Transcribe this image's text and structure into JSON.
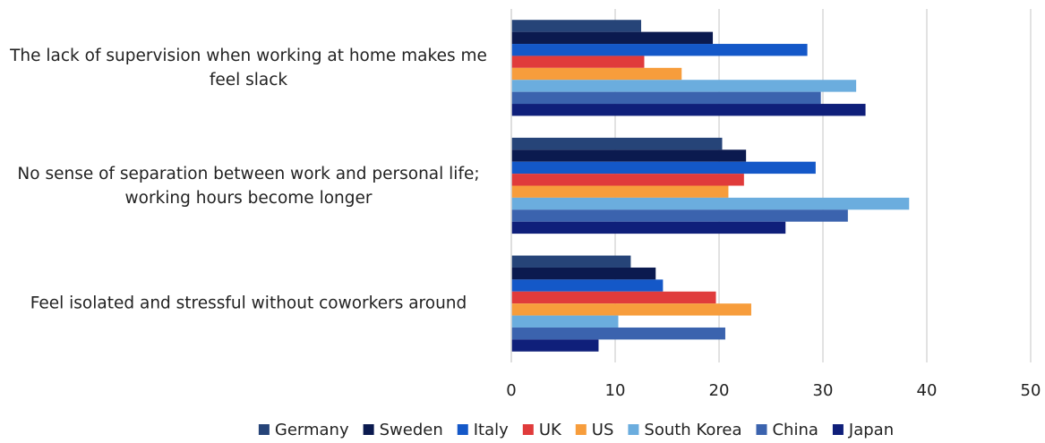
{
  "chart_data": {
    "type": "bar",
    "orientation": "horizontal",
    "categories": [
      "The lack of supervision when working at home makes me feel slack",
      "No sense of separation between work and personal life; working hours become longer",
      "Feel isolated and stressful without coworkers around"
    ],
    "series": [
      {
        "name": "Germany",
        "color": "#264478",
        "values": [
          12.5,
          20.3,
          11.5
        ]
      },
      {
        "name": "Sweden",
        "color": "#0b1a4f",
        "values": [
          19.4,
          22.6,
          13.9
        ]
      },
      {
        "name": "Italy",
        "color": "#1458c8",
        "values": [
          28.5,
          29.3,
          14.6
        ]
      },
      {
        "name": "UK",
        "color": "#e03b3b",
        "values": [
          12.8,
          22.4,
          19.7
        ]
      },
      {
        "name": "US",
        "color": "#f79d3c",
        "values": [
          16.4,
          20.9,
          23.1
        ]
      },
      {
        "name": "South Korea",
        "color": "#6badde",
        "values": [
          33.2,
          38.3,
          10.3
        ]
      },
      {
        "name": "China",
        "color": "#3b63ae",
        "values": [
          29.8,
          32.4,
          20.6
        ]
      },
      {
        "name": "Japan",
        "color": "#0f1f7a",
        "values": [
          34.1,
          26.4,
          8.4
        ]
      }
    ],
    "xlim": [
      0,
      50
    ],
    "xticks": [
      0,
      10,
      20,
      30,
      40,
      50
    ],
    "grid": true,
    "legend": "bottom"
  }
}
